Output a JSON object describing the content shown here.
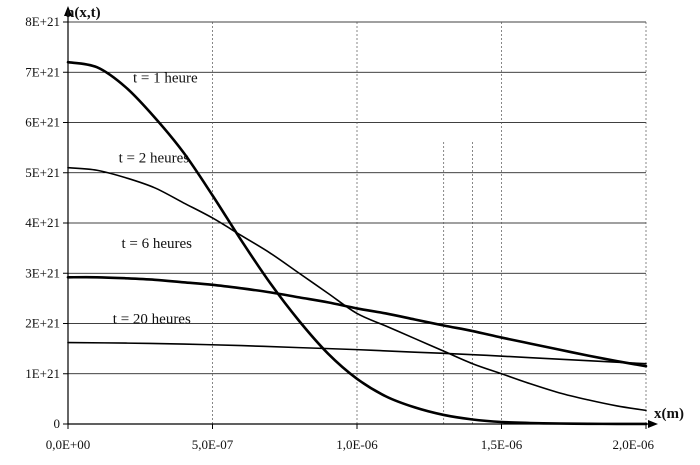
{
  "chart_data": {
    "type": "line",
    "title": "",
    "xlabel": "x(m)",
    "ylabel": "n(x,t)",
    "xlim": [
      0,
      2e-06
    ],
    "ylim": [
      0,
      8e+21
    ],
    "grid": "on",
    "legend": "inline labels",
    "x_ticks": [
      0,
      5e-07,
      1e-06,
      1.5e-06,
      2e-06
    ],
    "x_tick_labels": [
      "0,0E+00",
      "5,0E-07",
      "1,0E-06",
      "1,5E-06",
      "2,0E-06"
    ],
    "y_ticks": [
      0,
      1e+21,
      2e+21,
      3e+21,
      4e+21,
      5e+21,
      6e+21,
      7e+21,
      8e+21
    ],
    "y_tick_labels": [
      "0",
      "1E+21",
      "2E+21",
      "3E+21",
      "4E+21",
      "5E+21",
      "6E+21",
      "7E+21",
      "8E+21"
    ],
    "x_minor_grid": [
      1.3e-06,
      1.4e-06
    ],
    "series": [
      {
        "name": "t = 1 heure",
        "color": "#000000",
        "weight": "bold",
        "label_anchor": [
          2.25e-07,
          6.8e+21
        ],
        "x": [
          0,
          1e-07,
          2e-07,
          3e-07,
          4e-07,
          5e-07,
          6e-07,
          7e-07,
          8e-07,
          9e-07,
          1e-06,
          1.1e-06,
          1.2e-06,
          1.3e-06,
          1.4e-06,
          1.5e-06,
          1.6e-06,
          1.7e-06,
          1.8e-06,
          1.9e-06,
          2e-06
        ],
        "y": [
          7.2e+21,
          7.1e+21,
          6.7e+21,
          6.1e+21,
          5.4e+21,
          4.55e+21,
          3.65e+21,
          2.8e+21,
          2.05e+21,
          1.4e+21,
          9e+20,
          5.5e+20,
          3.3e+20,
          1.8e+20,
          9e+19,
          4e+19,
          2e+19,
          1e+19,
          4e+18,
          2e+18,
          1e+18
        ]
      },
      {
        "name": "t = 2 heures",
        "color": "#000000",
        "weight": "normal",
        "label_anchor": [
          1.75e-07,
          5.2e+21
        ],
        "x": [
          0,
          1e-07,
          2e-07,
          3e-07,
          4e-07,
          5e-07,
          6e-07,
          7e-07,
          8e-07,
          9e-07,
          1e-06,
          1.1e-06,
          1.2e-06,
          1.3e-06,
          1.4e-06,
          1.5e-06,
          1.6e-06,
          1.7e-06,
          1.8e-06,
          1.9e-06,
          2e-06
        ],
        "y": [
          5.1e+21,
          5.05e+21,
          4.9e+21,
          4.7e+21,
          4.4e+21,
          4.1e+21,
          3.75e+21,
          3.4e+21,
          3e+21,
          2.6e+21,
          2.2e+21,
          1.95e+21,
          1.7e+21,
          1.45e+21,
          1.2e+21,
          1e+21,
          8e+20,
          6.2e+20,
          4.8e+20,
          3.6e+20,
          2.7e+20
        ]
      },
      {
        "name": "t = 6 heures",
        "color": "#000000",
        "weight": "bold",
        "label_anchor": [
          1.85e-07,
          3.5e+21
        ],
        "x": [
          0,
          1e-07,
          2e-07,
          3e-07,
          4e-07,
          5e-07,
          6e-07,
          7e-07,
          8e-07,
          9e-07,
          1e-06,
          1.1e-06,
          1.2e-06,
          1.3e-06,
          1.4e-06,
          1.5e-06,
          1.6e-06,
          1.7e-06,
          1.8e-06,
          1.9e-06,
          2e-06
        ],
        "y": [
          2.92e+21,
          2.92e+21,
          2.9e+21,
          2.87e+21,
          2.82e+21,
          2.77e+21,
          2.7e+21,
          2.62e+21,
          2.52e+21,
          2.42e+21,
          2.3e+21,
          2.2e+21,
          2.08e+21,
          1.96e+21,
          1.85e+21,
          1.72e+21,
          1.6e+21,
          1.48e+21,
          1.36e+21,
          1.25e+21,
          1.15e+21
        ]
      },
      {
        "name": "t = 20 heures",
        "color": "#000000",
        "weight": "normal",
        "label_anchor": [
          1.55e-07,
          2e+21
        ],
        "x": [
          0,
          2e-07,
          4e-07,
          6e-07,
          8e-07,
          1e-06,
          1.2e-06,
          1.4e-06,
          1.6e-06,
          1.8e-06,
          2e-06
        ],
        "y": [
          1.62e+21,
          1.61e+21,
          1.59e+21,
          1.56e+21,
          1.52e+21,
          1.48e+21,
          1.43e+21,
          1.38e+21,
          1.32e+21,
          1.26e+21,
          1.2e+21
        ]
      }
    ]
  }
}
